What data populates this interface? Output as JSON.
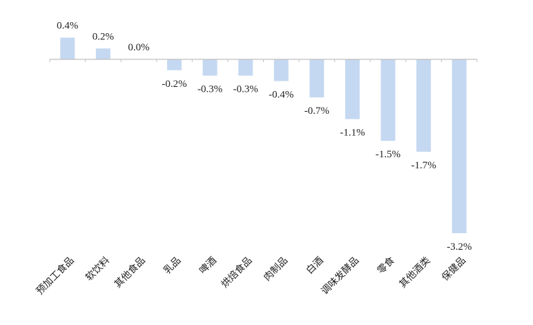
{
  "chart_data": {
    "type": "bar",
    "categories": [
      "预加工食品",
      "软饮料",
      "其他食品",
      "乳品",
      "啤酒",
      "烘焙食品",
      "肉制品",
      "白酒",
      "调味发酵品",
      "零食",
      "其他酒类",
      "保健品"
    ],
    "values": [
      0.4,
      0.2,
      0.0,
      -0.2,
      -0.3,
      -0.3,
      -0.4,
      -0.7,
      -1.1,
      -1.5,
      -1.7,
      -3.2
    ],
    "data_labels": [
      "0.4%",
      "0.2%",
      "0.0%",
      "-0.2%",
      "-0.3%",
      "-0.3%",
      "-0.4%",
      "-0.7%",
      "-1.1%",
      "-1.5%",
      "-1.7%",
      "-3.2%"
    ],
    "unit": "%",
    "title": "",
    "xlabel": "",
    "ylabel": "",
    "ylim": [
      -3.2,
      0.4
    ],
    "grid": false,
    "legend": "none",
    "colors": {
      "bar": "#c5d8f1",
      "axis": "#bfbfbf",
      "text": "#222222"
    }
  }
}
